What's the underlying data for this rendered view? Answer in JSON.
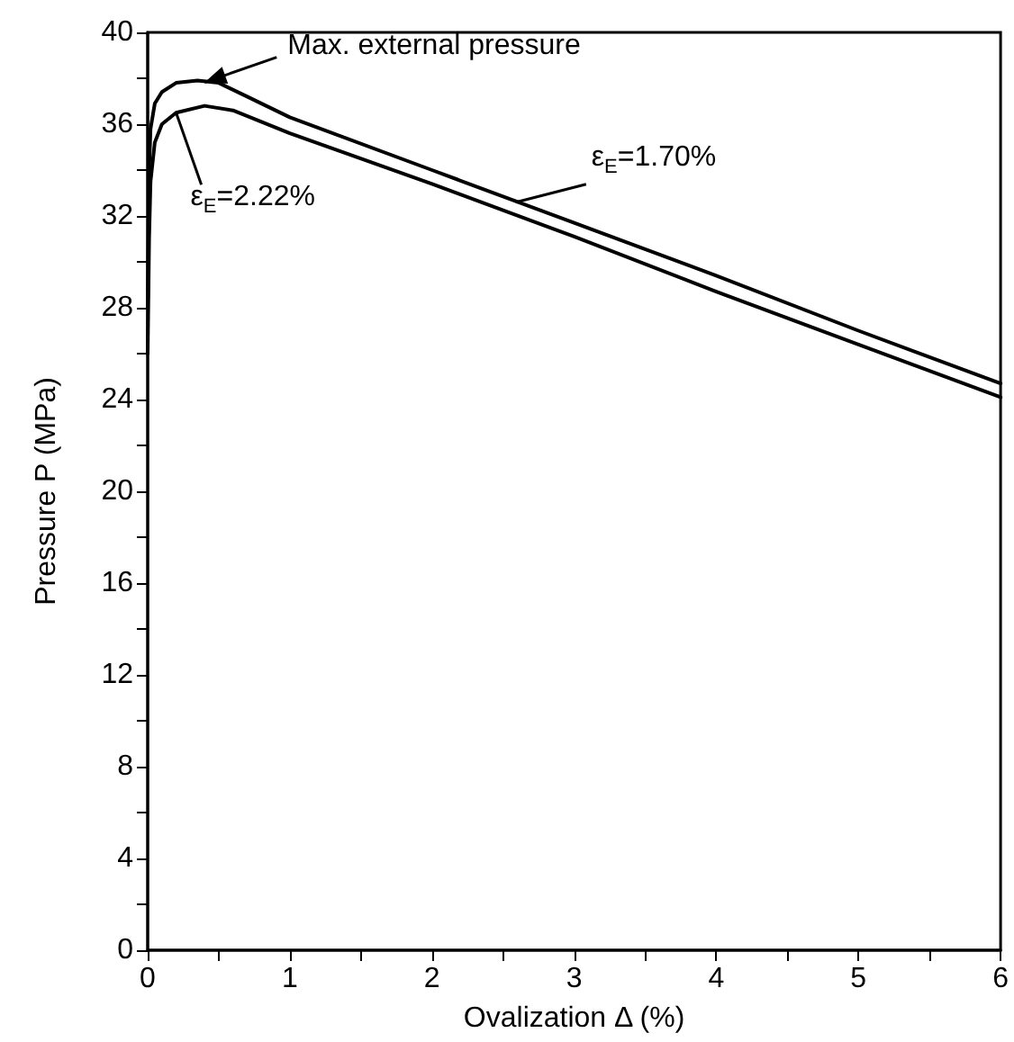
{
  "chart_data": {
    "type": "line",
    "xlabel": "Ovalization Δ (%)",
    "ylabel": "Pressure P (MPa)",
    "xlim": [
      0,
      6
    ],
    "ylim": [
      0,
      40
    ],
    "xticks": [
      0,
      {
        "value": 0.5,
        "label": null
      },
      1,
      {
        "value": 1.5,
        "label": null
      },
      2,
      {
        "value": 2.5,
        "label": null
      },
      3,
      {
        "value": 3.5,
        "label": null
      },
      4,
      {
        "value": 4.5,
        "label": null
      },
      5,
      {
        "value": 5.5,
        "label": null
      },
      6
    ],
    "yticks": [
      0,
      {
        "value": 2,
        "label": null
      },
      4,
      {
        "value": 6,
        "label": null
      },
      8,
      {
        "value": 10,
        "label": null
      },
      12,
      {
        "value": 14,
        "label": null
      },
      16,
      {
        "value": 18,
        "label": null
      },
      20,
      {
        "value": 22,
        "label": null
      },
      24,
      {
        "value": 26,
        "label": null
      },
      28,
      {
        "value": 30,
        "label": null
      },
      32,
      {
        "value": 34,
        "label": null
      },
      36,
      {
        "value": 38,
        "label": null
      },
      40
    ],
    "grid": false,
    "marker": "none",
    "line_style": "solid",
    "series": [
      {
        "color": "#000000",
        "x": [
          0,
          0.01,
          0.02,
          0.05,
          0.1,
          0.2,
          0.35,
          0.5,
          0.7,
          1,
          2,
          3,
          4,
          5,
          6
        ],
        "values": [
          28,
          34,
          35.8,
          36.9,
          37.4,
          37.8,
          37.9,
          37.8,
          37.2,
          36.3,
          34.0,
          31.7,
          29.4,
          27.0,
          24.7
        ]
      },
      {
        "color": "#000000",
        "x": [
          0,
          0.01,
          0.02,
          0.05,
          0.1,
          0.2,
          0.4,
          0.6,
          0.8,
          1,
          2,
          3,
          4,
          5,
          6
        ],
        "values": [
          26,
          31,
          33.5,
          35.2,
          36.0,
          36.5,
          36.8,
          36.6,
          36.1,
          35.6,
          33.4,
          31.1,
          28.7,
          26.4,
          24.1
        ]
      }
    ],
    "annotations": [
      {
        "text": "Max. external pressure",
        "x": 0.35,
        "y": 37.9
      },
      {
        "text": "ε$_{E}$=1.70%",
        "x": 2.59,
        "y": 32.6
      },
      {
        "text": "ε$_{E}$=2.22%",
        "x": 0.2,
        "y": 36.5
      }
    ]
  }
}
